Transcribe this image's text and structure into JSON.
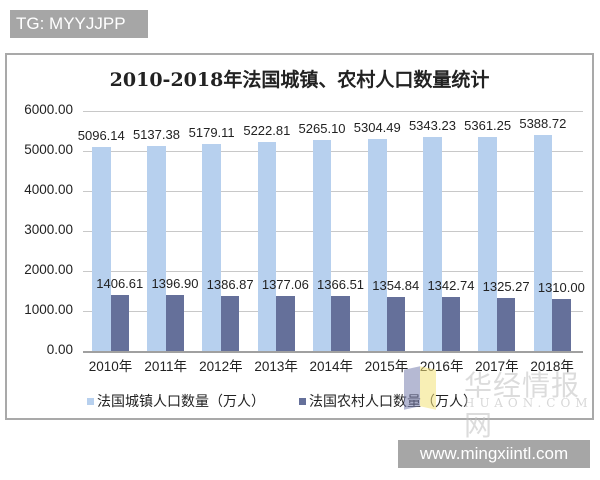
{
  "tag": {
    "text": "TG: MYYJJPP"
  },
  "footer_watermark": {
    "text": "www.mingxiintl.com"
  },
  "logo_watermark": {
    "cn": "华经情报网",
    "en": "HUAON.COM"
  },
  "chart": {
    "title": "2010-2018年法国城镇、农村人口数量统计",
    "y_ticks": [
      "6000.00",
      "5000.00",
      "4000.00",
      "3000.00",
      "2000.00",
      "1000.00",
      "0.00"
    ],
    "legend": [
      {
        "label": "法国城镇人口数量（万人）",
        "color": "#b7d0ee"
      },
      {
        "label": "法国农村人口数量（万人）",
        "color": "#65709a"
      }
    ]
  },
  "chart_data": {
    "type": "bar",
    "title": "2010-2018年法国城镇、农村人口数量统计",
    "xlabel": "",
    "ylabel": "",
    "ylim": [
      0,
      6000
    ],
    "grid": true,
    "legend_position": "bottom",
    "categories": [
      "2010年",
      "2011年",
      "2012年",
      "2013年",
      "2014年",
      "2015年",
      "2016年",
      "2017年",
      "2018年"
    ],
    "series": [
      {
        "name": "法国城镇人口数量（万人）",
        "color": "#b7d0ee",
        "values": [
          5096.14,
          5137.38,
          5179.11,
          5222.81,
          5265.1,
          5304.49,
          5343.23,
          5361.25,
          5388.72
        ],
        "labels": [
          "5096.14",
          "5137.38",
          "5179.11",
          "5222.81",
          "5265.10",
          "5304.49",
          "5343.23",
          "5361.25",
          "5388.72"
        ]
      },
      {
        "name": "法国农村人口数量（万人）",
        "color": "#65709a",
        "values": [
          1406.61,
          1396.9,
          1386.87,
          1377.06,
          1366.51,
          1354.84,
          1342.74,
          1325.27,
          1310.0
        ],
        "labels": [
          "1406.61",
          "1396.90",
          "1386.87",
          "1377.06",
          "1366.51",
          "1354.84",
          "1342.74",
          "1325.27",
          "1310.00"
        ]
      }
    ]
  }
}
